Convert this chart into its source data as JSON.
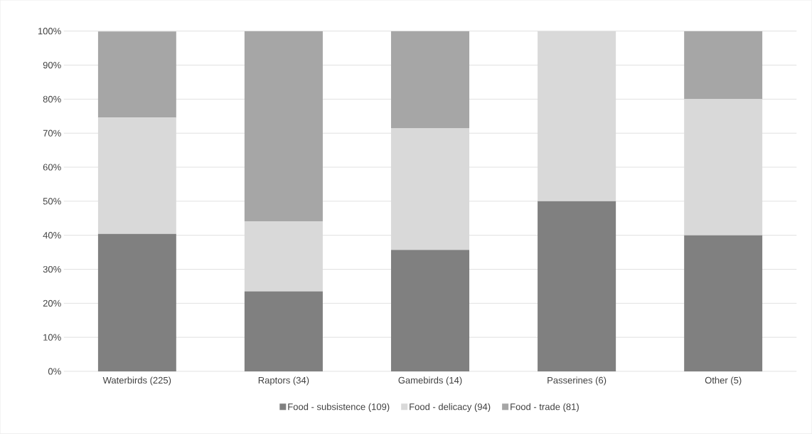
{
  "chart_data": {
    "type": "bar",
    "stacked": true,
    "categories": [
      "Waterbirds (225)",
      "Raptors (34)",
      "Gamebirds (14)",
      "Passerines (6)",
      "Other (5)"
    ],
    "series": [
      {
        "name": "Food - subsistence (109)",
        "color": "#808080",
        "values": [
          40.4,
          23.5,
          35.7,
          50,
          40
        ]
      },
      {
        "name": "Food - delicacy (94)",
        "color": "#d9d9d9",
        "values": [
          34.2,
          20.6,
          35.7,
          50,
          40
        ]
      },
      {
        "name": "Food - trade (81)",
        "color": "#a6a6a6",
        "values": [
          25.3,
          55.9,
          28.6,
          0,
          20
        ]
      }
    ],
    "ylim": [
      0,
      100
    ],
    "yticks": [
      {
        "value": 0,
        "label": "0%"
      },
      {
        "value": 10,
        "label": "10%"
      },
      {
        "value": 20,
        "label": "20%"
      },
      {
        "value": 30,
        "label": "30%"
      },
      {
        "value": 40,
        "label": "40%"
      },
      {
        "value": 50,
        "label": "50%"
      },
      {
        "value": 60,
        "label": "60%"
      },
      {
        "value": 70,
        "label": "70%"
      },
      {
        "value": 80,
        "label": "80%"
      },
      {
        "value": 90,
        "label": "90%"
      },
      {
        "value": 100,
        "label": "100%"
      }
    ],
    "grid": "y",
    "legend": "bottom"
  }
}
